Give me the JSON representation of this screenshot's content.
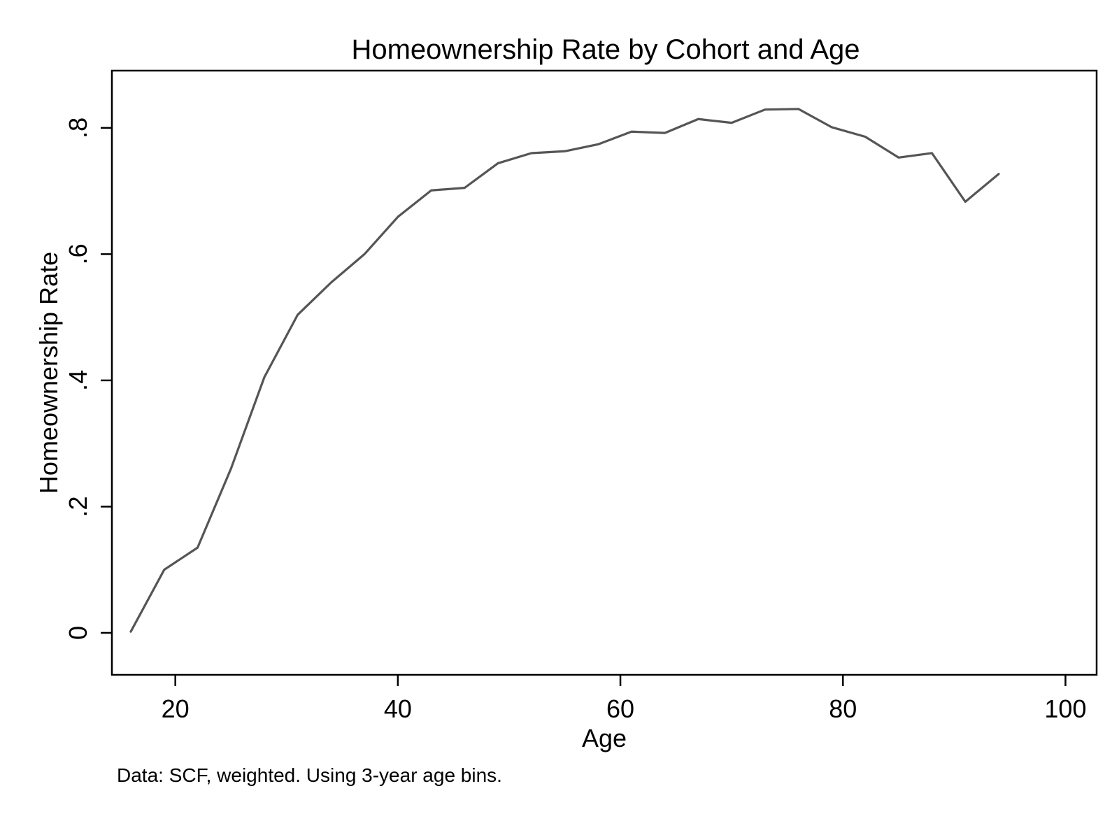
{
  "chart_data": {
    "type": "line",
    "title": "Homeownership Rate by Cohort and Age",
    "xlabel": "Age",
    "ylabel": "Homeownership Rate",
    "note": "Data: SCF, weighted. Using 3-year age bins.",
    "xlim": [
      14.3,
      102.8
    ],
    "ylim": [
      -0.0665,
      0.8907
    ],
    "x_ticks": [
      20,
      40,
      60,
      80,
      100
    ],
    "x_tick_labels": [
      "20",
      "40",
      "60",
      "80",
      "100"
    ],
    "y_ticks": [
      0,
      0.2,
      0.4,
      0.6,
      0.8
    ],
    "y_tick_labels": [
      "0",
      ".2",
      ".4",
      ".6",
      ".8"
    ],
    "grid": false,
    "legend": "none",
    "series": [
      {
        "color": "#555555",
        "x": [
          16,
          19,
          22,
          25,
          28,
          31,
          34,
          37,
          40,
          43,
          46,
          49,
          52,
          55,
          58,
          61,
          64,
          67,
          70,
          73,
          76,
          79,
          82,
          85,
          88,
          91,
          94
        ],
        "y": [
          0.002,
          0.1,
          0.135,
          0.26,
          0.405,
          0.504,
          0.555,
          0.6,
          0.659,
          0.701,
          0.705,
          0.744,
          0.76,
          0.763,
          0.774,
          0.794,
          0.792,
          0.814,
          0.808,
          0.829,
          0.83,
          0.801,
          0.786,
          0.753,
          0.76,
          0.683,
          0.727
        ]
      }
    ]
  }
}
